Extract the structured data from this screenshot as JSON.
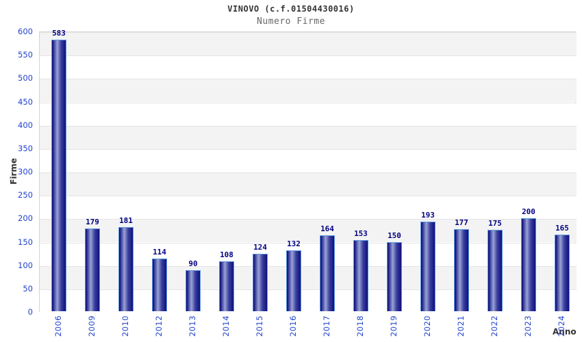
{
  "chart_data": {
    "type": "bar",
    "title": "VINOVO (c.f.01504430016)",
    "subtitle": "Numero Firme",
    "xlabel": "Anno",
    "ylabel": "Firme",
    "categories": [
      "2006",
      "2009",
      "2010",
      "2012",
      "2013",
      "2014",
      "2015",
      "2016",
      "2017",
      "2018",
      "2019",
      "2020",
      "2021",
      "2022",
      "2023",
      "2024"
    ],
    "values": [
      583,
      179,
      181,
      114,
      90,
      108,
      124,
      132,
      164,
      153,
      150,
      193,
      177,
      175,
      200,
      165
    ],
    "ylim": [
      0,
      600
    ],
    "ytick_step": 50,
    "grid": "horizontal-bands-alternating",
    "legend": "none",
    "colors": {
      "title": "#333333",
      "subtitle": "#666666",
      "tick_label": "#2244cc",
      "value_label": "#000080",
      "axis_title": "#333333",
      "bar_edge_dark": "#06066e",
      "bar_mid": "#3a3f9e",
      "bar_highlight": "#9aa3d4",
      "bar_right_dark": "#10107e",
      "bar_outline": "#5b9be0",
      "band_gray": "#f3f3f3",
      "band_white": "#ffffff",
      "plot_border": "#d4d4d4"
    }
  }
}
